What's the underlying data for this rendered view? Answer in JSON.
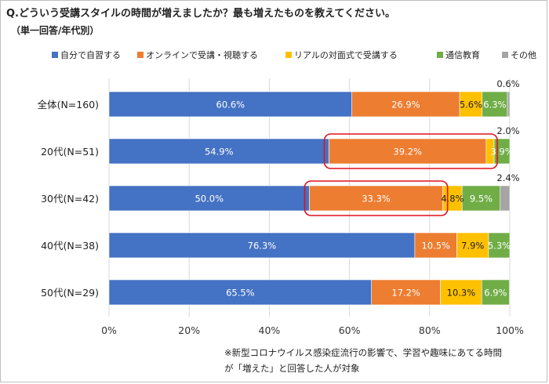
{
  "title": "Q.どういう受講スタイルの時間が増えましたか？最も増えたものを教えてください。",
  "subtitle": "（単一回答/年代別）",
  "footnote": [
    "※新型コロナウイルス感染症流行の影響で、学習や趣味にあてる時間",
    "が「増えた」と回答した人が対象"
  ],
  "colors": {
    "series": [
      "#4472c4",
      "#ed7d31",
      "#ffc000",
      "#70ad47",
      "#a5a5a5"
    ],
    "highlight": "#e0101e",
    "grid": "#d9d9d9"
  },
  "highlights": [
    {
      "row": 1,
      "series": [
        1,
        2
      ]
    },
    {
      "row": 2,
      "series": [
        1
      ]
    }
  ],
  "chart_data": {
    "type": "bar",
    "orientation": "horizontal",
    "stacked": true,
    "categories": [
      "全体(N=160)",
      "20代(N=51)",
      "30代(N=42)",
      "40代(N=38)",
      "50代(N=29)"
    ],
    "series": [
      {
        "name": "自分で自習する",
        "values": [
          60.6,
          54.9,
          50.0,
          76.3,
          65.5
        ],
        "labels": [
          "60.6%",
          "54.9%",
          "50.0%",
          "76.3%",
          "65.5%"
        ]
      },
      {
        "name": "オンラインで受講・視聴する",
        "values": [
          26.9,
          39.2,
          33.3,
          10.5,
          17.2
        ],
        "labels": [
          "26.9%",
          "39.2%",
          "33.3%",
          "10.5%",
          "17.2%"
        ]
      },
      {
        "name": "リアルの対面式で受講する",
        "values": [
          5.6,
          2.0,
          4.8,
          7.9,
          10.3
        ],
        "labels": [
          "5.6%",
          "2.0%",
          "4.8%",
          "7.9%",
          "10.3%"
        ]
      },
      {
        "name": "通信教育",
        "values": [
          6.3,
          3.9,
          9.5,
          5.3,
          6.9
        ],
        "labels": [
          "6.3%",
          "3.9%",
          "9.5%",
          "5.3%",
          "6.9%"
        ]
      },
      {
        "name": "その他",
        "values": [
          0.6,
          0.0,
          2.4,
          0.0,
          0.0
        ],
        "labels": [
          "0.6%",
          "",
          "2.4%",
          "",
          ""
        ]
      }
    ],
    "xlim": [
      0,
      100
    ],
    "xticks": [
      "0%",
      "20%",
      "40%",
      "60%",
      "80%",
      "100%"
    ],
    "legend_position": "top",
    "grid": true
  }
}
